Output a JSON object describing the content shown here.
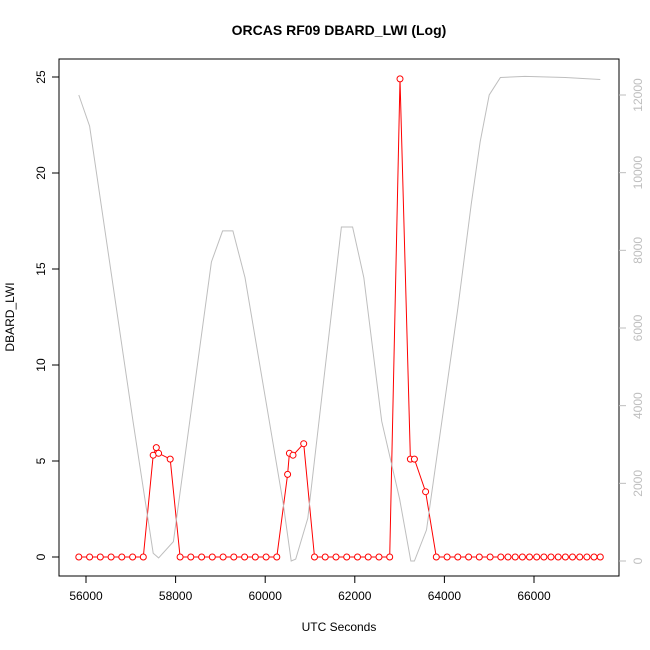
{
  "chart_data": {
    "type": "line",
    "title": "ORCAS RF09 DBARD_LWI (Log)",
    "xlabel": "UTC Seconds",
    "ylabel": "DBARD_LWI",
    "xlim": [
      55700,
      67600
    ],
    "ylim": [
      0,
      25
    ],
    "y2lim": [
      0,
      12000
    ],
    "x_ticks": [
      56000,
      58000,
      60000,
      62000,
      64000,
      66000
    ],
    "y_ticks": [
      0,
      5,
      10,
      15,
      20,
      25
    ],
    "y2_ticks": [
      0,
      2000,
      4000,
      6000,
      8000,
      10000,
      12000
    ],
    "series": [
      {
        "color": "#ff0000",
        "style": "points-and-lines",
        "axis": "left",
        "points": [
          [
            55840,
            0
          ],
          [
            56080,
            0
          ],
          [
            56320,
            0
          ],
          [
            56560,
            0
          ],
          [
            56800,
            0
          ],
          [
            57040,
            0
          ],
          [
            57280,
            0
          ],
          [
            57500,
            5.3
          ],
          [
            57570,
            5.7
          ],
          [
            57620,
            5.4
          ],
          [
            57880,
            5.1
          ],
          [
            58100,
            0
          ],
          [
            58340,
            0
          ],
          [
            58580,
            0
          ],
          [
            58820,
            0
          ],
          [
            59060,
            0
          ],
          [
            59300,
            0
          ],
          [
            59540,
            0
          ],
          [
            59780,
            0
          ],
          [
            60020,
            0
          ],
          [
            60260,
            0
          ],
          [
            60500,
            4.3
          ],
          [
            60540,
            5.4
          ],
          [
            60620,
            5.3
          ],
          [
            60860,
            5.9
          ],
          [
            61100,
            0
          ],
          [
            61340,
            0
          ],
          [
            61580,
            0
          ],
          [
            61820,
            0
          ],
          [
            62060,
            0
          ],
          [
            62300,
            0
          ],
          [
            62540,
            0
          ],
          [
            62780,
            0
          ],
          [
            63010,
            24.9
          ],
          [
            63240,
            5.1
          ],
          [
            63330,
            5.1
          ],
          [
            63580,
            3.4
          ],
          [
            63820,
            0
          ],
          [
            64060,
            0
          ],
          [
            64300,
            0
          ],
          [
            64540,
            0
          ],
          [
            64780,
            0
          ],
          [
            65020,
            0
          ],
          [
            65260,
            0
          ],
          [
            65420,
            0
          ],
          [
            65580,
            0
          ],
          [
            65740,
            0
          ],
          [
            65900,
            0
          ],
          [
            66060,
            0
          ],
          [
            66220,
            0
          ],
          [
            66380,
            0
          ],
          [
            66540,
            0
          ],
          [
            66700,
            0
          ],
          [
            66860,
            0
          ],
          [
            67020,
            0
          ],
          [
            67180,
            0
          ],
          [
            67340,
            0
          ],
          [
            67480,
            0
          ]
        ]
      },
      {
        "color": "#bebebe",
        "style": "line",
        "axis": "right",
        "points": [
          [
            55840,
            12000
          ],
          [
            56080,
            11200
          ],
          [
            57050,
            3600
          ],
          [
            57500,
            200
          ],
          [
            57620,
            80
          ],
          [
            57950,
            500
          ],
          [
            58800,
            7700
          ],
          [
            59050,
            8500
          ],
          [
            59280,
            8500
          ],
          [
            59550,
            7300
          ],
          [
            60400,
            1500
          ],
          [
            60580,
            0
          ],
          [
            60680,
            50
          ],
          [
            60950,
            1100
          ],
          [
            61700,
            8600
          ],
          [
            61950,
            8600
          ],
          [
            62200,
            7300
          ],
          [
            62600,
            3600
          ],
          [
            63000,
            1600
          ],
          [
            63250,
            0
          ],
          [
            63330,
            0
          ],
          [
            63600,
            800
          ],
          [
            64300,
            6500
          ],
          [
            64600,
            9200
          ],
          [
            64800,
            10800
          ],
          [
            65000,
            12000
          ],
          [
            65250,
            12450
          ],
          [
            65800,
            12480
          ],
          [
            66700,
            12450
          ],
          [
            67480,
            12400
          ]
        ]
      }
    ]
  }
}
